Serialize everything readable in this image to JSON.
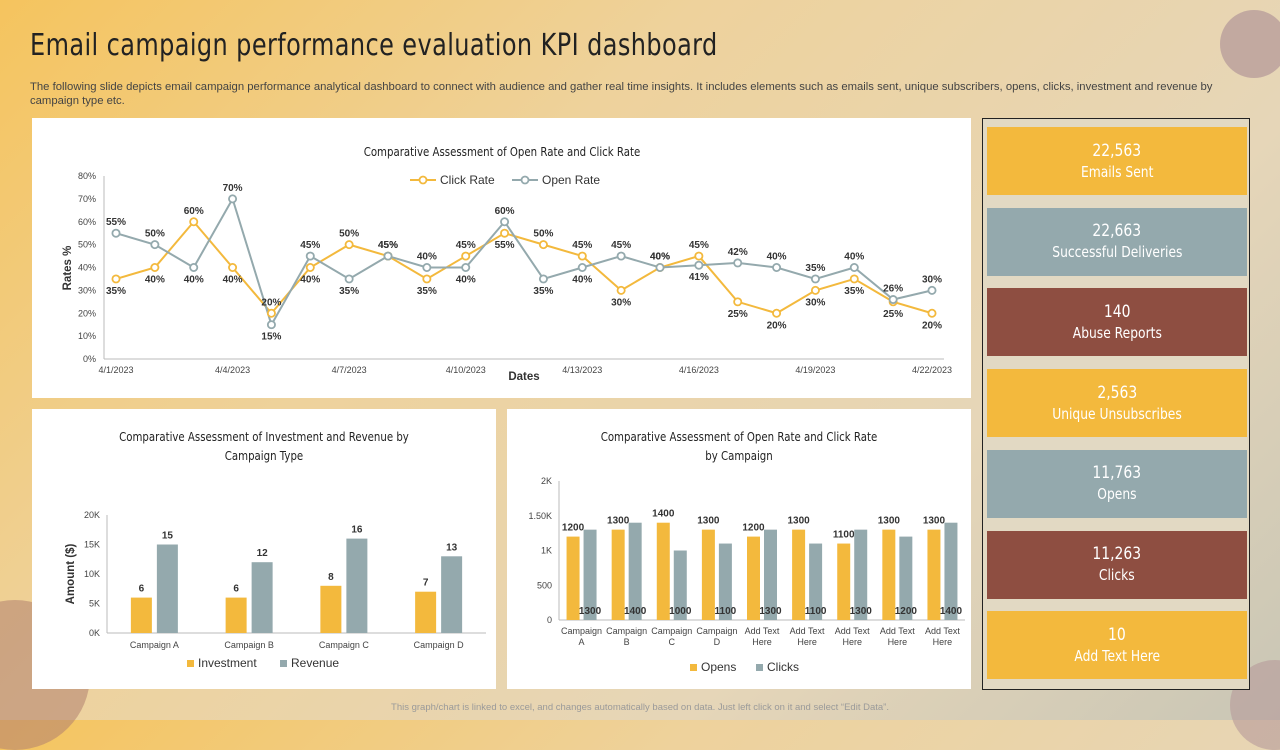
{
  "page": {
    "title": "Email campaign performance evaluation KPI dashboard",
    "subtitle": "The following slide depicts email campaign performance analytical dashboard to connect with audience and gather real time insights. It includes elements such as emails sent, unique subscribers, opens, clicks, investment and revenue by campaign type etc.",
    "footer": "This graph/chart is linked to excel, and changes automatically based on data. Just left click on it and select “Edit Data”."
  },
  "colors": {
    "yellow": "#F3B93D",
    "grey": "#94A9AD",
    "brown": "#8E4E41"
  },
  "kpis": [
    {
      "value": "22,563",
      "label": "Emails Sent",
      "color": "#F3B93D"
    },
    {
      "value": "22,663",
      "label": "Successful Deliveries",
      "color": "#94A9AD"
    },
    {
      "value": "140",
      "label": "Abuse Reports",
      "color": "#8E4E41"
    },
    {
      "value": "2,563",
      "label": "Unique Unsubscribes",
      "color": "#F3B93D"
    },
    {
      "value": "11,763",
      "label": "Opens",
      "color": "#94A9AD"
    },
    {
      "value": "11,263",
      "label": "Clicks",
      "color": "#8E4E41"
    },
    {
      "value": "10",
      "label": "Add Text Here",
      "color": "#F3B93D"
    }
  ],
  "chart_data": [
    {
      "type": "line",
      "title": "Comparative Assessment of Open Rate and Click Rate",
      "xlabel": "Dates",
      "ylabel": "Rates %",
      "ylim": [
        0,
        80
      ],
      "yticks": [
        0,
        10,
        20,
        30,
        40,
        50,
        60,
        70,
        80
      ],
      "ytick_suffix": "%",
      "xtick_labels": [
        "4/1/2023",
        "4/4/2023",
        "4/7/2023",
        "4/10/2023",
        "4/13/2023",
        "4/16/2023",
        "4/19/2023",
        "4/22/2023"
      ],
      "xtick_every": 3,
      "legend": "top-center",
      "grid": false,
      "series": [
        {
          "name": "Click Rate",
          "color": "#F3B93D",
          "values": [
            35,
            40,
            60,
            40,
            20,
            40,
            50,
            45,
            35,
            45,
            55,
            50,
            45,
            30,
            40,
            45,
            25,
            20,
            30,
            35,
            25,
            20
          ]
        },
        {
          "name": "Open Rate",
          "color": "#94A9AD",
          "values": [
            55,
            50,
            40,
            70,
            15,
            45,
            35,
            45,
            40,
            40,
            60,
            35,
            40,
            45,
            40,
            41,
            42,
            40,
            35,
            40,
            26,
            30
          ]
        }
      ]
    },
    {
      "type": "bar",
      "title": "Comparative Assessment of Investment and Revenue by Campaign Type",
      "title_lines": [
        "Comparative Assessment of Investment and Revenue by",
        "Campaign Type"
      ],
      "xlabel": "",
      "ylabel": "Amount ($)",
      "ylim": [
        0,
        20000
      ],
      "yticks": [
        0,
        5000,
        10000,
        15000,
        20000
      ],
      "ytick_labels": [
        "0K",
        "5K",
        "10K",
        "15K",
        "20K"
      ],
      "categories": [
        "Campaign A",
        "Campaign B",
        "Campaign C",
        "Campaign D"
      ],
      "legend": "bottom",
      "grid": false,
      "series": [
        {
          "name": "Investment",
          "color": "#F3B93D",
          "values": [
            6000,
            6000,
            8000,
            7000
          ],
          "labels": [
            "6",
            "6",
            "8",
            "7"
          ]
        },
        {
          "name": "Revenue",
          "color": "#94A9AD",
          "values": [
            15000,
            12000,
            16000,
            13000
          ],
          "labels": [
            "15",
            "12",
            "16",
            "13"
          ]
        }
      ]
    },
    {
      "type": "bar",
      "title": "Comparative Assessment of Open Rate and Click Rate by Campaign",
      "title_lines": [
        "Comparative Assessment of Open Rate and Click Rate",
        "by Campaign"
      ],
      "xlabel": "",
      "ylabel": "",
      "ylim": [
        0,
        2000
      ],
      "yticks": [
        0,
        500,
        1000,
        1500,
        2000
      ],
      "ytick_labels": [
        "0",
        "500",
        "1K",
        "1.50K",
        "2K"
      ],
      "categories": [
        "Campaign A",
        "Campaign B",
        "Campaign C",
        "Campaign D",
        "Add Text Here",
        "Add Text Here",
        "Add Text Here",
        "Add Text Here",
        "Add Text Here"
      ],
      "legend": "bottom",
      "grid": false,
      "series": [
        {
          "name": "Opens",
          "color": "#F3B93D",
          "values": [
            1200,
            1300,
            1400,
            1300,
            1200,
            1300,
            1100,
            1300,
            1300
          ]
        },
        {
          "name": "Clicks",
          "color": "#94A9AD",
          "values": [
            1300,
            1400,
            1000,
            1100,
            1300,
            1100,
            1300,
            1200,
            1400
          ]
        }
      ]
    }
  ]
}
